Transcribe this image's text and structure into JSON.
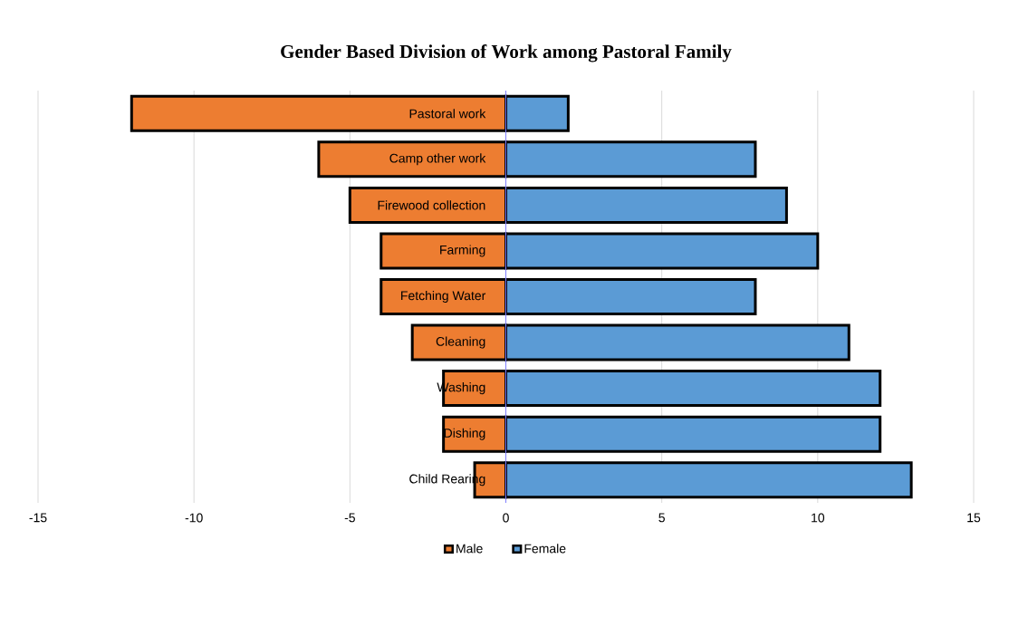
{
  "chart_data": {
    "type": "bar",
    "orientation": "horizontal",
    "stacked": true,
    "title": "Gender Based Division of Work among Pastoral Family",
    "categories": [
      "Pastoral work",
      "Camp other work",
      "Firewood collection",
      "Farming",
      "Fetching Water",
      "Cleaning",
      "Washing",
      "Dishing",
      "Child Rearing"
    ],
    "series": [
      {
        "name": "Male",
        "color": "#ed7d31",
        "values": [
          -12,
          -6,
          -5,
          -4,
          -4,
          -3,
          -2,
          -2,
          -1
        ]
      },
      {
        "name": "Female",
        "color": "#5b9bd5",
        "values": [
          2,
          8,
          9,
          10,
          8,
          11,
          12,
          12,
          13
        ]
      }
    ],
    "xlim": [
      -15,
      15
    ],
    "xticks": [
      -15,
      -10,
      -5,
      0,
      5,
      10,
      15
    ],
    "grid": "x",
    "legend": "bottom"
  }
}
